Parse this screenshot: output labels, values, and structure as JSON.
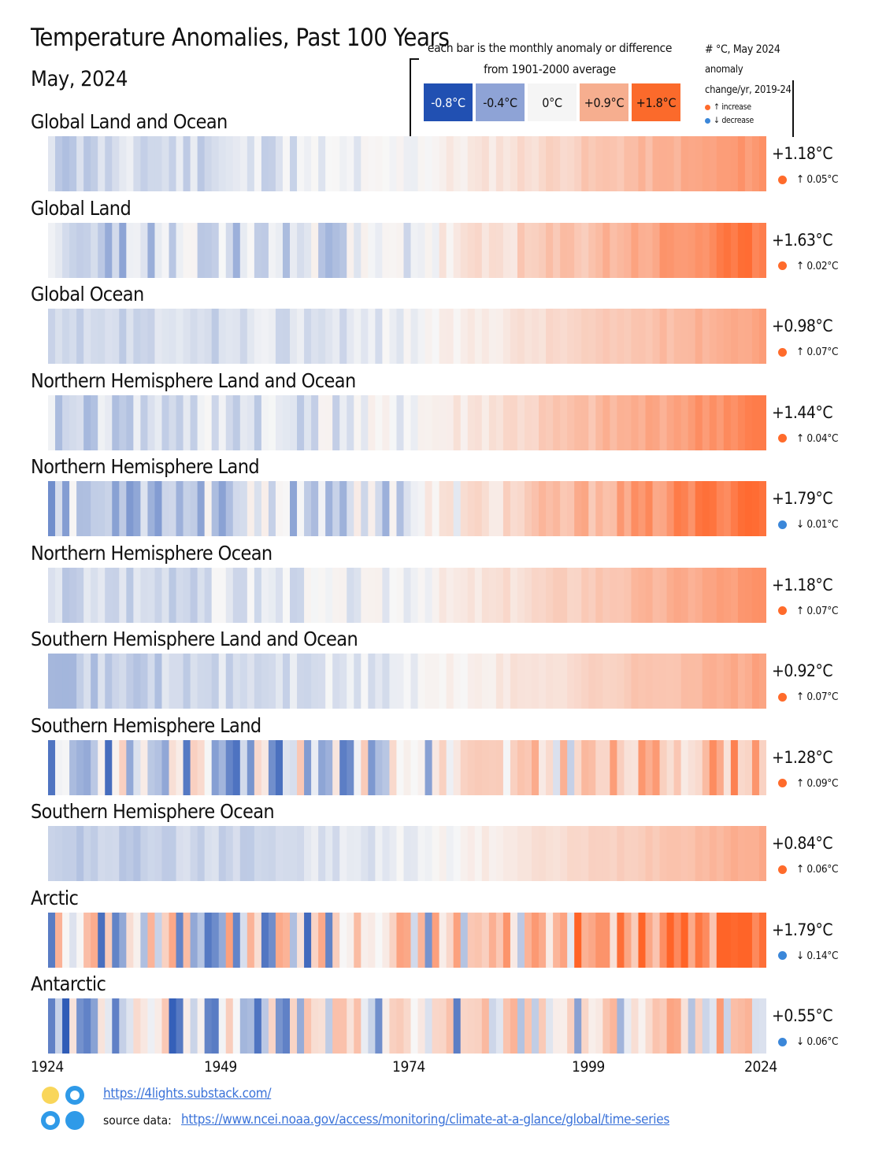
{
  "title": "Temperature Anomalies, Past 100 Years",
  "subtitle": "May, 2024",
  "legend": {
    "note_line1": "each bar is the monthly anomaly or difference",
    "note_line2": "from 1901-2000 average",
    "swatches": [
      {
        "label": "-0.8°C",
        "color": "#2150b2",
        "text_color": "#ffffff"
      },
      {
        "label": "-0.4°C",
        "color": "#8ea3d6",
        "text_color": "#111111"
      },
      {
        "label": "0°C",
        "color": "#f5f5f5",
        "text_color": "#111111"
      },
      {
        "label": "+0.9°C",
        "color": "#f6ae8f",
        "text_color": "#111111"
      },
      {
        "label": "+1.8°C",
        "color": "#fb6a2b",
        "text_color": "#111111"
      }
    ]
  },
  "key": {
    "line1": "# °C, May 2024",
    "line2": "anomaly",
    "line3": "change/yr, 2019-24",
    "increase": "↑ increase",
    "decrease": "↓ decrease"
  },
  "colors": {
    "increase": "#ff6b2b",
    "decrease": "#3b87d9",
    "cold": "#2150b2",
    "neutral": "#f7f7f7",
    "warm": "#ff6428"
  },
  "footer": {
    "link_main": "https://4lights.substack.com/",
    "source_label": "source data:",
    "source_link": "https://www.ncei.noaa.gov/access/monitoring/climate-at-a-glance/global/time-series"
  },
  "chart_data": {
    "type": "heatmap",
    "title": "Temperature Anomalies, Past 100 Years",
    "x_ticks": [
      "1924",
      "1949",
      "1974",
      "1999",
      "2024"
    ],
    "x_range": [
      1924,
      2024
    ],
    "color_scale": {
      "min": -0.8,
      "zero": 0,
      "max": 1.8,
      "unit": "°C"
    },
    "series": [
      {
        "name": "Global Land and Ocean",
        "anomaly": "+1.18°C",
        "change": "↑ 0.05°C",
        "direction": "increase",
        "level": -0.18,
        "trend": 1.23,
        "amp": 0.12,
        "seed": 11
      },
      {
        "name": "Global Land",
        "anomaly": "+1.63°C",
        "change": "↑ 0.02°C",
        "direction": "increase",
        "level": -0.22,
        "trend": 1.6,
        "amp": 0.22,
        "seed": 23
      },
      {
        "name": "Global Ocean",
        "anomaly": "+0.98°C",
        "change": "↑ 0.07°C",
        "direction": "increase",
        "level": -0.2,
        "trend": 1.06,
        "amp": 0.09,
        "seed": 37
      },
      {
        "name": "Northern Hemisphere Land and Ocean",
        "anomaly": "+1.44°C",
        "change": "↑ 0.04°C",
        "direction": "increase",
        "level": -0.18,
        "trend": 1.48,
        "amp": 0.16,
        "seed": 41
      },
      {
        "name": "Northern Hemisphere Land",
        "anomaly": "+1.79°C",
        "change": "↓ 0.01°C",
        "direction": "decrease",
        "level": -0.24,
        "trend": 1.8,
        "amp": 0.27,
        "seed": 53
      },
      {
        "name": "Northern Hemisphere Ocean",
        "anomaly": "+1.18°C",
        "change": "↑ 0.07°C",
        "direction": "increase",
        "level": -0.16,
        "trend": 1.22,
        "amp": 0.12,
        "seed": 67
      },
      {
        "name": "Southern Hemisphere Land and Ocean",
        "anomaly": "+0.92°C",
        "change": "↑ 0.07°C",
        "direction": "increase",
        "level": -0.22,
        "trend": 1.0,
        "amp": 0.1,
        "seed": 71
      },
      {
        "name": "Southern Hemisphere Land",
        "anomaly": "+1.28°C",
        "change": "↑ 0.09°C",
        "direction": "increase",
        "level": -0.12,
        "trend": 0.95,
        "amp": 0.62,
        "seed": 83
      },
      {
        "name": "Southern Hemisphere Ocean",
        "anomaly": "+0.84°C",
        "change": "↑ 0.06°C",
        "direction": "increase",
        "level": -0.22,
        "trend": 0.96,
        "amp": 0.08,
        "seed": 97
      },
      {
        "name": "Arctic",
        "anomaly": "+1.79°C",
        "change": "↓ 0.14°C",
        "direction": "decrease",
        "level": 0.1,
        "trend": 1.75,
        "amp": 0.95,
        "seed": 101
      },
      {
        "name": "Antarctic",
        "anomaly": "+0.55°C",
        "change": "↓ 0.06°C",
        "direction": "decrease",
        "level": -0.1,
        "trend": 0.55,
        "amp": 0.7,
        "seed": 113
      }
    ]
  }
}
